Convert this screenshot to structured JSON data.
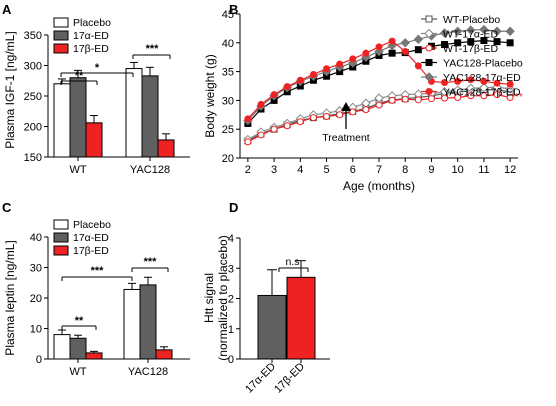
{
  "panels": {
    "A": {
      "label": "A"
    },
    "B": {
      "label": "B"
    },
    "C": {
      "label": "C"
    },
    "D": {
      "label": "D"
    }
  },
  "chart_data": [
    {
      "id": "A",
      "type": "bar",
      "ylabel": "Plasma IGF-1 [ng/mL]",
      "ylim": [
        150,
        350
      ],
      "yticks": [
        150,
        200,
        250,
        300,
        350
      ],
      "categories": [
        "WT",
        "YAC128"
      ],
      "series": [
        {
          "name": "Placebo",
          "color": "#ffffff",
          "values": [
            270,
            295
          ],
          "errors": [
            8,
            10
          ]
        },
        {
          "name": "17α-ED",
          "color": "#606060",
          "values": [
            280,
            283
          ],
          "errors": [
            12,
            14
          ]
        },
        {
          "name": "17β-ED",
          "color": "#ee2222",
          "values": [
            206,
            178
          ],
          "errors": [
            12,
            10
          ]
        }
      ],
      "annotations": [
        "**",
        "*",
        "***"
      ]
    },
    {
      "id": "B",
      "type": "line",
      "xlabel": "Age (months)",
      "ylabel": "Body weight (g)",
      "xlim": [
        1.7,
        12.3
      ],
      "ylim": [
        20,
        45
      ],
      "xticks": [
        2,
        3,
        4,
        5,
        6,
        7,
        8,
        9,
        10,
        11,
        12
      ],
      "yticks": [
        20,
        25,
        30,
        35,
        40,
        45
      ],
      "annotation_text": "Treatment",
      "annotation_x": 7.7,
      "sig": "***",
      "series": [
        {
          "name": "WT-Placebo",
          "color": "#555555",
          "marker": "square-open",
          "x": [
            2,
            2.5,
            3,
            3.5,
            4,
            4.5,
            5,
            5.5,
            6,
            6.5,
            7,
            7.5,
            8,
            8.5,
            9,
            9.5,
            10,
            10.5,
            11,
            11.5,
            12
          ],
          "y": [
            23,
            24.2,
            25,
            25.8,
            26.5,
            27,
            27.3,
            27.7,
            28.1,
            28.6,
            29.5,
            30.1,
            30.3,
            30.5,
            30.8,
            31.2,
            31.5,
            31.6,
            31.9,
            31.8,
            31.5
          ]
        },
        {
          "name": "WT-17α-ED",
          "color": "#888888",
          "marker": "diamond-open",
          "x": [
            2,
            2.5,
            3,
            3.5,
            4,
            4.5,
            5,
            5.5,
            6,
            6.5,
            7,
            7.5,
            8,
            8.5,
            9,
            9.5,
            10,
            10.5,
            11,
            11.5,
            12
          ],
          "y": [
            23.2,
            24.5,
            25.3,
            26,
            26.8,
            27.5,
            27.8,
            28.2,
            28.8,
            29.5,
            30.4,
            30.8,
            31,
            31.1,
            31.2,
            31.5,
            31.8,
            32.1,
            32.2,
            32.3,
            32
          ]
        },
        {
          "name": "WT-17β-ED",
          "color": "#ee2222",
          "marker": "circle-open",
          "x": [
            2,
            2.5,
            3,
            3.5,
            4,
            4.5,
            5,
            5.5,
            6,
            6.5,
            7,
            7.5,
            8,
            8.5,
            9,
            9.5,
            10,
            10.5,
            11,
            11.5,
            12
          ],
          "y": [
            22.8,
            24,
            25,
            25.6,
            26.3,
            27,
            27.2,
            27.5,
            28,
            28.4,
            29.2,
            30,
            30.2,
            30.1,
            30.3,
            30.4,
            30.5,
            30.8,
            30.8,
            31,
            30.5
          ]
        },
        {
          "name": "YAC128-Placebo",
          "color": "#000000",
          "marker": "square-filled",
          "x": [
            2,
            2.5,
            3,
            3.5,
            4,
            4.5,
            5,
            5.5,
            6,
            6.5,
            7,
            7.5,
            8,
            8.5,
            9,
            9.5,
            10,
            10.5,
            11,
            11.5,
            12
          ],
          "y": [
            26,
            28.5,
            30,
            31.5,
            32.5,
            33.5,
            34.2,
            35,
            35.8,
            36.8,
            37.8,
            38.2,
            38.3,
            38.8,
            39.4,
            39.7,
            40,
            40.2,
            40.4,
            40.2,
            40
          ]
        },
        {
          "name": "YAC128-17α-ED",
          "color": "#777777",
          "marker": "diamond-filled",
          "x": [
            2,
            2.5,
            3,
            3.5,
            4,
            4.5,
            5,
            5.5,
            6,
            6.5,
            7,
            7.5,
            8,
            8.5,
            9,
            9.5,
            10,
            10.5,
            11,
            11.5,
            12
          ],
          "y": [
            26.5,
            29,
            30.8,
            32.2,
            33.3,
            34.2,
            35,
            35.8,
            36.5,
            37.5,
            38.5,
            39.5,
            40,
            40.6,
            41.2,
            41.7,
            42,
            42.2,
            42.3,
            42,
            42
          ]
        },
        {
          "name": "YAC128-17β-ED",
          "color": "#ee2222",
          "marker": "circle-filled",
          "x": [
            2,
            2.5,
            3,
            3.5,
            4,
            4.5,
            5,
            5.5,
            6,
            6.5,
            7,
            7.5,
            8,
            8.5,
            9,
            9.5,
            10,
            10.5,
            11,
            11.5,
            12
          ],
          "y": [
            26.8,
            29.3,
            31,
            32.4,
            33.5,
            34.5,
            35.5,
            36.3,
            37.2,
            38.2,
            39.3,
            40.3,
            38.5,
            36,
            33.3,
            33.1,
            33.3,
            33.6,
            33.3,
            33,
            32.8
          ]
        }
      ]
    },
    {
      "id": "C",
      "type": "bar",
      "ylabel": "Plasma leptin [ng/mL]",
      "ylim": [
        0,
        40
      ],
      "yticks": [
        0,
        10,
        20,
        30,
        40
      ],
      "categories": [
        "WT",
        "YAC128"
      ],
      "series": [
        {
          "name": "Placebo",
          "color": "#ffffff",
          "values": [
            8,
            22.8
          ],
          "errors": [
            1.5,
            2
          ]
        },
        {
          "name": "17α-ED",
          "color": "#606060",
          "values": [
            6.8,
            24.3
          ],
          "errors": [
            1,
            2.5
          ]
        },
        {
          "name": "17β-ED",
          "color": "#ee2222",
          "values": [
            2,
            3
          ],
          "errors": [
            0.5,
            1
          ]
        }
      ],
      "annotations": [
        "**",
        "***",
        "***"
      ]
    },
    {
      "id": "D",
      "type": "bar",
      "ylabel_line1": "Htt signal",
      "ylabel_line2": "(normalized to placebo)",
      "ylim": [
        0,
        4
      ],
      "yticks": [
        0,
        1,
        2,
        3,
        4
      ],
      "categories": [
        "17α-ED",
        "17β-ED"
      ],
      "series": [
        {
          "name": "",
          "colors": [
            "#606060",
            "#ee2222"
          ],
          "values": [
            2.1,
            2.7
          ],
          "errors": [
            0.85,
            0.55
          ]
        }
      ],
      "annotations": [
        "n.s."
      ]
    }
  ]
}
